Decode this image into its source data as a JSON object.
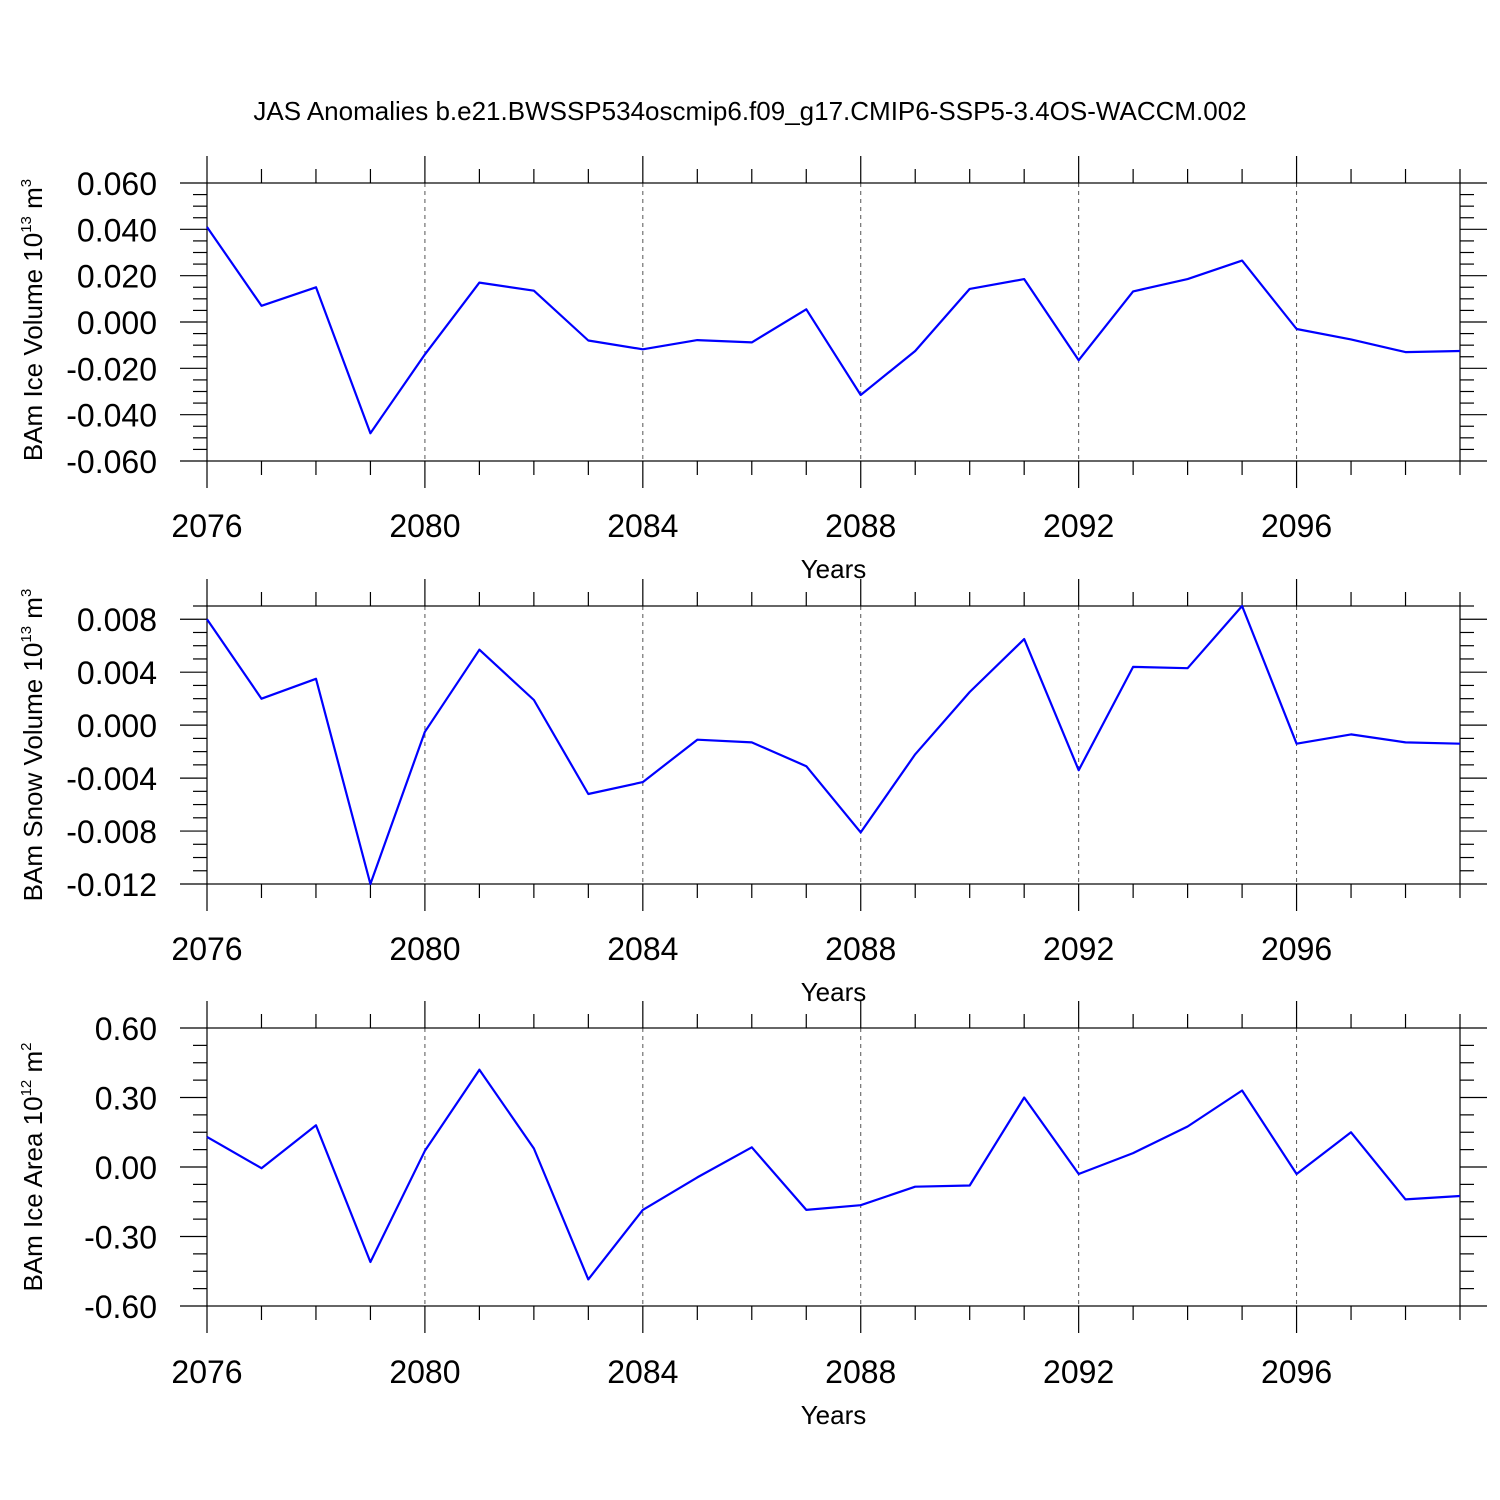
{
  "title": "JAS Anomalies b.e21.BWSSP534oscmip6.f09_g17.CMIP6-SSP5-3.4OS-WACCM.002",
  "line_color": "#0000ff",
  "chart_data": [
    {
      "type": "line",
      "ylabel_main": "BAm Ice Volume 10",
      "ylabel_exp": "13",
      "ylabel_unit": " m",
      "ylabel_unit_exp": "3",
      "xlabel": "Years",
      "xlim": [
        2076,
        2099
      ],
      "ylim": [
        -0.06,
        0.06
      ],
      "x_ticks": [
        "2076",
        "2080",
        "2084",
        "2088",
        "2092",
        "2096"
      ],
      "y_ticks": [
        "0.060",
        "0.040",
        "0.020",
        "0.000",
        "-0.020",
        "-0.040",
        "-0.060"
      ],
      "y_tick_values": [
        0.06,
        0.04,
        0.02,
        0.0,
        -0.02,
        -0.04,
        -0.06
      ],
      "y_minor_step": 0.005,
      "x": [
        2076,
        2077,
        2078,
        2079,
        2080,
        2081,
        2082,
        2083,
        2084,
        2085,
        2086,
        2087,
        2088,
        2089,
        2090,
        2091,
        2092,
        2093,
        2094,
        2095,
        2096,
        2097,
        2098,
        2099
      ],
      "values": [
        0.041,
        0.007,
        0.015,
        -0.048,
        -0.014,
        0.017,
        0.0135,
        -0.008,
        -0.0118,
        -0.0078,
        -0.0088,
        0.0055,
        -0.0315,
        -0.0125,
        0.0143,
        0.0185,
        -0.0165,
        0.0132,
        0.0185,
        0.0265,
        -0.003,
        -0.0075,
        -0.013,
        -0.0125
      ],
      "grid": "vertical dashed at major x ticks"
    },
    {
      "type": "line",
      "ylabel_main": "BAm Snow Volume 10",
      "ylabel_exp": "13",
      "ylabel_unit": " m",
      "ylabel_unit_exp": "3",
      "xlabel": "Years",
      "xlim": [
        2076,
        2099
      ],
      "ylim": [
        -0.012,
        0.009
      ],
      "x_ticks": [
        "2076",
        "2080",
        "2084",
        "2088",
        "2092",
        "2096"
      ],
      "y_ticks": [
        "0.008",
        "0.004",
        "0.000",
        "-0.004",
        "-0.008",
        "-0.012"
      ],
      "y_tick_values": [
        0.008,
        0.004,
        0.0,
        -0.004,
        -0.008,
        -0.012
      ],
      "y_minor_step": 0.001,
      "x": [
        2076,
        2077,
        2078,
        2079,
        2080,
        2081,
        2082,
        2083,
        2084,
        2085,
        2086,
        2087,
        2088,
        2089,
        2090,
        2091,
        2092,
        2093,
        2094,
        2095,
        2096,
        2097,
        2098,
        2099
      ],
      "values": [
        0.008,
        0.002,
        0.0035,
        -0.012,
        -0.0005,
        0.0057,
        0.0019,
        -0.0052,
        -0.0043,
        -0.0011,
        -0.0013,
        -0.0031,
        -0.0081,
        -0.0022,
        0.0025,
        0.0065,
        -0.0034,
        0.0044,
        0.0043,
        0.009,
        -0.0014,
        -0.0007,
        -0.0013,
        -0.0014
      ],
      "grid": "vertical dashed at major x ticks"
    },
    {
      "type": "line",
      "ylabel_main": "BAm Ice Area 10",
      "ylabel_exp": "12",
      "ylabel_unit": " m",
      "ylabel_unit_exp": "2",
      "xlabel": "Years",
      "xlim": [
        2076,
        2099
      ],
      "ylim": [
        -0.6,
        0.6
      ],
      "x_ticks": [
        "2076",
        "2080",
        "2084",
        "2088",
        "2092",
        "2096"
      ],
      "y_ticks": [
        "0.60",
        "0.30",
        "0.00",
        "-0.30",
        "-0.60"
      ],
      "y_tick_values": [
        0.6,
        0.3,
        0.0,
        -0.3,
        -0.6
      ],
      "y_minor_step": 0.075,
      "x": [
        2076,
        2077,
        2078,
        2079,
        2080,
        2081,
        2082,
        2083,
        2084,
        2085,
        2086,
        2087,
        2088,
        2089,
        2090,
        2091,
        2092,
        2093,
        2094,
        2095,
        2096,
        2097,
        2098,
        2099
      ],
      "values": [
        0.13,
        -0.005,
        0.18,
        -0.41,
        0.07,
        0.42,
        0.08,
        -0.485,
        -0.185,
        -0.045,
        0.085,
        -0.185,
        -0.165,
        -0.085,
        -0.08,
        0.3,
        -0.03,
        0.06,
        0.175,
        0.33,
        -0.03,
        0.15,
        -0.14,
        -0.125
      ],
      "grid": "vertical dashed at major x ticks"
    }
  ]
}
